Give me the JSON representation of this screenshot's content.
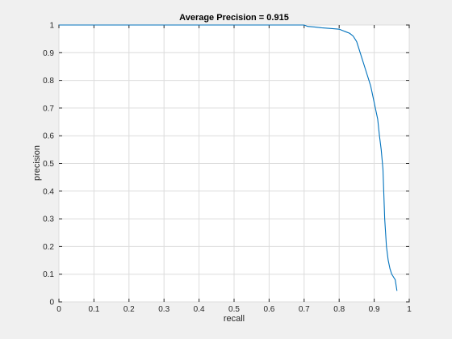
{
  "chart_data": {
    "type": "line",
    "title": "Average Precision = 0.915",
    "xlabel": "recall",
    "ylabel": "precision",
    "xlim": [
      0,
      1
    ],
    "ylim": [
      0,
      1
    ],
    "grid": true,
    "xticks": [
      "0",
      "0.1",
      "0.2",
      "0.3",
      "0.4",
      "0.5",
      "0.6",
      "0.7",
      "0.8",
      "0.9",
      "1"
    ],
    "yticks": [
      "0",
      "0.1",
      "0.2",
      "0.3",
      "0.4",
      "0.5",
      "0.6",
      "0.7",
      "0.8",
      "0.9",
      "1"
    ],
    "line_color": "#0072bd",
    "series": [
      {
        "x": [
          0.0,
          0.3,
          0.6,
          0.7,
          0.71,
          0.73,
          0.75,
          0.78,
          0.8,
          0.81,
          0.82,
          0.83,
          0.84,
          0.85,
          0.855,
          0.86,
          0.865,
          0.87,
          0.875,
          0.88,
          0.885,
          0.89,
          0.895,
          0.9,
          0.905,
          0.91,
          0.915,
          0.92,
          0.925,
          0.93,
          0.935,
          0.94,
          0.945,
          0.95,
          0.955,
          0.96,
          0.965
        ],
        "y": [
          1.0,
          1.0,
          1.0,
          1.0,
          0.995,
          0.993,
          0.99,
          0.987,
          0.985,
          0.98,
          0.975,
          0.97,
          0.96,
          0.94,
          0.92,
          0.9,
          0.88,
          0.86,
          0.84,
          0.82,
          0.8,
          0.78,
          0.75,
          0.72,
          0.69,
          0.66,
          0.6,
          0.55,
          0.48,
          0.3,
          0.2,
          0.15,
          0.12,
          0.1,
          0.09,
          0.08,
          0.04
        ]
      }
    ]
  }
}
